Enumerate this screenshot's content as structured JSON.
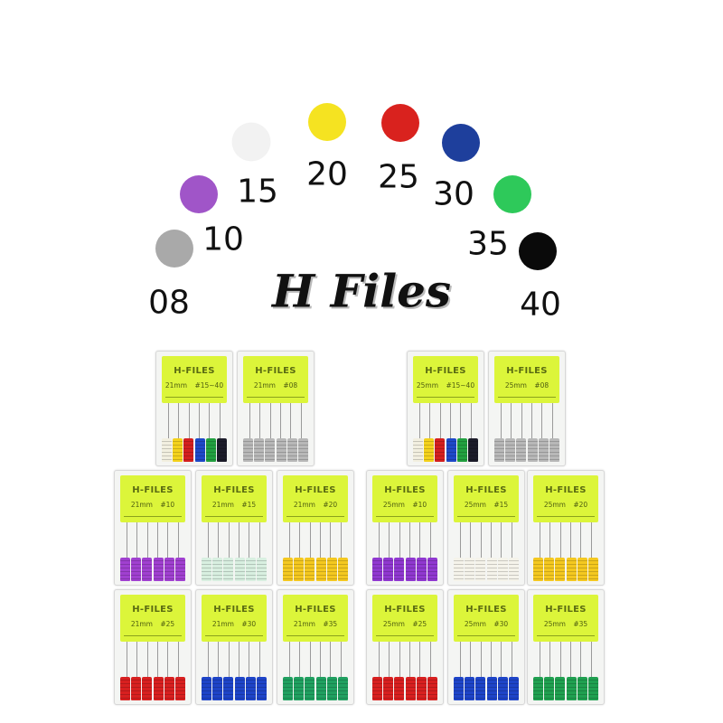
{
  "sizes": [
    {
      "label": "08",
      "color": "#a9a9a9"
    },
    {
      "label": "10",
      "color": "#a055c8"
    },
    {
      "label": "15",
      "color": "#f2f2f2"
    },
    {
      "label": "20",
      "color": "#f5e321"
    },
    {
      "label": "25",
      "color": "#d9221e"
    },
    {
      "label": "30",
      "color": "#1e3f9c"
    },
    {
      "label": "35",
      "color": "#2ec95a"
    },
    {
      "label": "40",
      "color": "#0a0a0a"
    }
  ],
  "title": "H Files",
  "brand": "H-FILES",
  "boxes": [
    {
      "length": "21mm",
      "size": "#15~40",
      "handles": [
        "#f2efe0",
        "#f4d21c",
        "#d42020",
        "#1e49c8",
        "#22a040",
        "#1c1c2a"
      ]
    },
    {
      "length": "21mm",
      "size": "#08",
      "handles": [
        "#b8b8b8",
        "#b8b8b8",
        "#b8b8b8",
        "#b8b8b8",
        "#b8b8b8",
        "#b8b8b8"
      ]
    },
    {
      "length": "25mm",
      "size": "#15~40",
      "handles": [
        "#f2efe0",
        "#f4d21c",
        "#d42020",
        "#1e49c8",
        "#22a040",
        "#1c1c2a"
      ]
    },
    {
      "length": "25mm",
      "size": "#08",
      "handles": [
        "#b8b8b8",
        "#b8b8b8",
        "#b8b8b8",
        "#b8b8b8",
        "#b8b8b8",
        "#b8b8b8"
      ]
    },
    {
      "length": "21mm",
      "size": "#10",
      "handles": [
        "#a040d0",
        "#a040d0",
        "#a040d0",
        "#a040d0",
        "#a040d0",
        "#a040d0"
      ]
    },
    {
      "length": "21mm",
      "size": "#15",
      "handles": [
        "#d8efe0",
        "#d8efe0",
        "#d8efe0",
        "#d8efe0",
        "#d8efe0",
        "#d8efe0"
      ]
    },
    {
      "length": "21mm",
      "size": "#20",
      "handles": [
        "#f4c820",
        "#f4c820",
        "#f4c820",
        "#f4c820",
        "#f4c820",
        "#f4c820"
      ]
    },
    {
      "length": "25mm",
      "size": "#10",
      "handles": [
        "#9038d0",
        "#9038d0",
        "#9038d0",
        "#9038d0",
        "#9038d0",
        "#9038d0"
      ]
    },
    {
      "length": "25mm",
      "size": "#15",
      "handles": [
        "#f5f3ea",
        "#f5f3ea",
        "#f5f3ea",
        "#f5f3ea",
        "#f5f3ea",
        "#f5f3ea"
      ]
    },
    {
      "length": "25mm",
      "size": "#20",
      "handles": [
        "#f4c820",
        "#f4c820",
        "#f4c820",
        "#f4c820",
        "#f4c820",
        "#f4c820"
      ]
    },
    {
      "length": "21mm",
      "size": "#25",
      "handles": [
        "#d82020",
        "#d82020",
        "#d82020",
        "#d82020",
        "#d82020",
        "#d82020"
      ]
    },
    {
      "length": "21mm",
      "size": "#30",
      "handles": [
        "#1e44c8",
        "#1e44c8",
        "#1e44c8",
        "#1e44c8",
        "#1e44c8",
        "#1e44c8"
      ]
    },
    {
      "length": "21mm",
      "size": "#35",
      "handles": [
        "#20a060",
        "#20a060",
        "#20a060",
        "#20a060",
        "#20a060",
        "#20a060"
      ]
    },
    {
      "length": "25mm",
      "size": "#25",
      "handles": [
        "#d82020",
        "#d82020",
        "#d82020",
        "#d82020",
        "#d82020",
        "#d82020"
      ]
    },
    {
      "length": "25mm",
      "size": "#30",
      "handles": [
        "#1e44c8",
        "#1e44c8",
        "#1e44c8",
        "#1e44c8",
        "#1e44c8",
        "#1e44c8"
      ]
    },
    {
      "length": "25mm",
      "size": "#35",
      "handles": [
        "#20a050",
        "#20a050",
        "#20a050",
        "#20a050",
        "#20a050",
        "#20a050"
      ]
    }
  ]
}
